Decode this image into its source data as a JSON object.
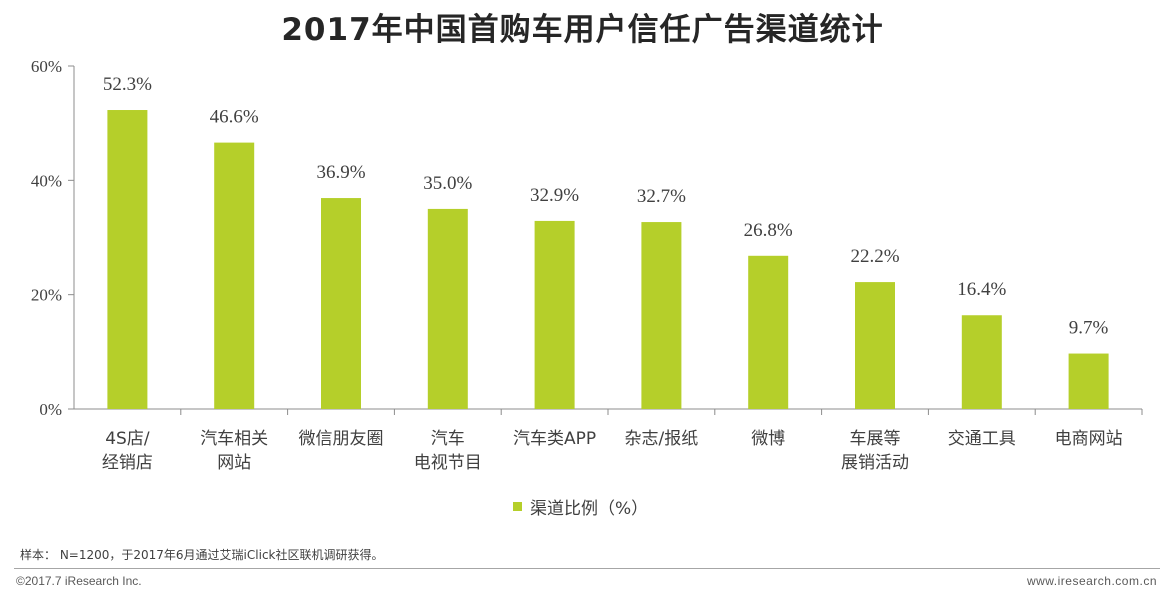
{
  "title": "2017年中国首购车用户信任广告渠道统计",
  "chart_data": {
    "type": "bar",
    "title": "2017年中国首购车用户信任广告渠道统计",
    "categories": [
      [
        "4S店/",
        "经销店"
      ],
      [
        "汽车相关",
        "网站"
      ],
      [
        "微信朋友圈"
      ],
      [
        "汽车",
        "电视节目"
      ],
      [
        "汽车类APP"
      ],
      [
        "杂志/报纸"
      ],
      [
        "微博"
      ],
      [
        "车展等",
        "展销活动"
      ],
      [
        "交通工具"
      ],
      [
        "电商网站"
      ]
    ],
    "series": [
      {
        "name": "渠道比例（%）",
        "values": [
          52.3,
          46.6,
          36.9,
          35.0,
          32.9,
          32.7,
          26.8,
          22.2,
          16.4,
          9.7
        ],
        "labels": [
          "52.3%",
          "46.6%",
          "36.9%",
          "35.0%",
          "32.9%",
          "32.7%",
          "26.8%",
          "22.2%",
          "16.4%",
          "9.7%"
        ]
      }
    ],
    "ylim": [
      0,
      60
    ],
    "yticks": [
      "0%",
      "20%",
      "40%",
      "60%"
    ],
    "ytick_values": [
      0,
      20,
      40,
      60
    ],
    "xlabel": "",
    "ylabel": "",
    "legend": "bottom-center",
    "grid": false,
    "bar_color": "#b5cf2a"
  },
  "legend_label": "渠道比例（%）",
  "note": "样本： N=1200，于2017年6月通过艾瑞iClick社区联机调研获得。",
  "copyright": "©2017.7 iResearch Inc.",
  "website": "www.iresearch.com.cn"
}
